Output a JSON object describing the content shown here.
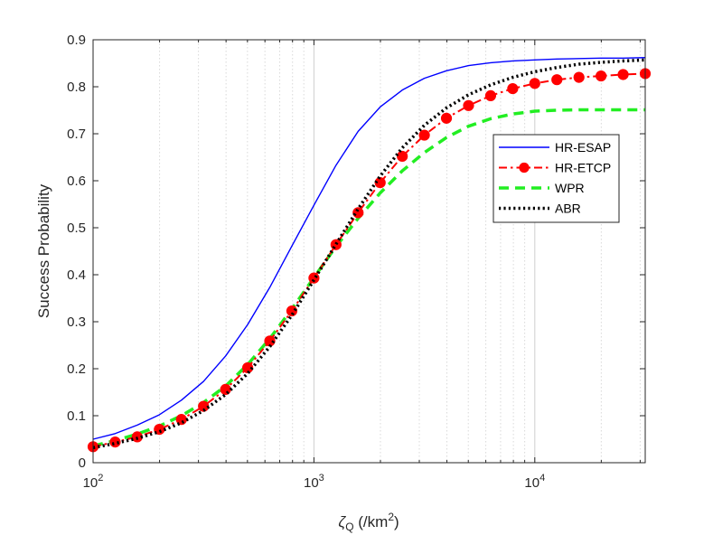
{
  "chart_data": {
    "type": "line",
    "title": "",
    "xlabel": "ζ_Q (/km²)",
    "xlabel_parts": {
      "symbol": "ζ",
      "subscript": "Q",
      "unit_open": " (/km",
      "unit_sup": "2",
      "unit_close": ")"
    },
    "ylabel": "Success Probability",
    "xscale": "log",
    "xlim": [
      100,
      31623
    ],
    "ylim": [
      0,
      0.9
    ],
    "grid": "x-major-and-minor",
    "legend_position": "right-middle",
    "x_ticks": [
      {
        "value": 100,
        "base": "10",
        "exp": "2"
      },
      {
        "value": 1000,
        "base": "10",
        "exp": "3"
      },
      {
        "value": 10000,
        "base": "10",
        "exp": "4"
      }
    ],
    "y_ticks": [
      {
        "value": 0,
        "label": "0"
      },
      {
        "value": 0.1,
        "label": "0.1"
      },
      {
        "value": 0.2,
        "label": "0.2"
      },
      {
        "value": 0.3,
        "label": "0.3"
      },
      {
        "value": 0.4,
        "label": "0.4"
      },
      {
        "value": 0.5,
        "label": "0.5"
      },
      {
        "value": 0.6,
        "label": "0.6"
      },
      {
        "value": 0.7,
        "label": "0.7"
      },
      {
        "value": 0.8,
        "label": "0.8"
      },
      {
        "value": 0.9,
        "label": "0.9"
      }
    ],
    "x": [
      100,
      125.9,
      158.5,
      199.5,
      251.2,
      316.2,
      398.1,
      501.2,
      631,
      794.3,
      1000,
      1258.9,
      1584.9,
      1995.3,
      2511.9,
      3162.3,
      3981.1,
      5011.9,
      6309.6,
      7943.3,
      10000,
      12589,
      15849,
      19953,
      25119,
      31623
    ],
    "series": [
      {
        "name": "HR-ESAP",
        "color": "#0000ff",
        "style": "solid",
        "marker": "none",
        "values": [
          0.05,
          0.062,
          0.08,
          0.102,
          0.133,
          0.173,
          0.227,
          0.294,
          0.373,
          0.461,
          0.548,
          0.633,
          0.705,
          0.757,
          0.793,
          0.818,
          0.834,
          0.845,
          0.851,
          0.855,
          0.857,
          0.859,
          0.86,
          0.861,
          0.861,
          0.862
        ]
      },
      {
        "name": "HR-ETCP",
        "color": "#ff0000",
        "style": "dashdot",
        "marker": "circle",
        "values": [
          0.034,
          0.044,
          0.055,
          0.071,
          0.092,
          0.12,
          0.156,
          0.202,
          0.259,
          0.323,
          0.393,
          0.464,
          0.532,
          0.596,
          0.652,
          0.697,
          0.733,
          0.76,
          0.781,
          0.796,
          0.807,
          0.815,
          0.82,
          0.823,
          0.826,
          0.828
        ]
      },
      {
        "name": "WPR",
        "color": "#22ee22",
        "style": "dashed",
        "marker": "none",
        "values": [
          0.036,
          0.047,
          0.061,
          0.078,
          0.1,
          0.128,
          0.163,
          0.209,
          0.264,
          0.327,
          0.394,
          0.46,
          0.52,
          0.574,
          0.621,
          0.66,
          0.692,
          0.716,
          0.732,
          0.742,
          0.748,
          0.75,
          0.751,
          0.751,
          0.751,
          0.751
        ]
      },
      {
        "name": "ABR",
        "color": "#000000",
        "style": "dotted",
        "marker": "none",
        "values": [
          0.032,
          0.041,
          0.052,
          0.066,
          0.085,
          0.111,
          0.145,
          0.19,
          0.247,
          0.314,
          0.389,
          0.465,
          0.54,
          0.61,
          0.67,
          0.718,
          0.755,
          0.783,
          0.804,
          0.82,
          0.832,
          0.841,
          0.848,
          0.852,
          0.855,
          0.857
        ]
      }
    ]
  }
}
